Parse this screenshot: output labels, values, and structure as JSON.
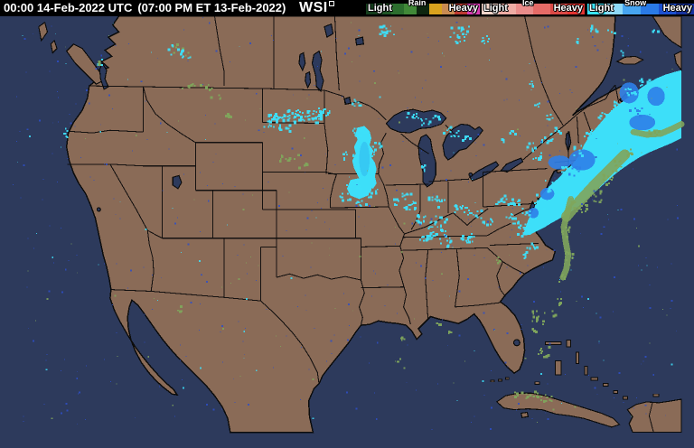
{
  "header": {
    "timestamp_utc": "00:00 14-Feb-2022 UTC",
    "timestamp_local": "(07:00 PM ET 13-Feb-2022)",
    "logo": "WSI"
  },
  "legend": {
    "groups": [
      {
        "id": "rain",
        "title": "Rain",
        "light_label": "Light",
        "heavy_label": "Heavy",
        "segments": [
          "#143e1c",
          "#1f5526",
          "#2c6e2e",
          "#418938",
          "#0d260f",
          "#d9a21e",
          "#c98b52",
          "#bc3a31",
          "#d83cb4"
        ]
      },
      {
        "id": "ice",
        "title": "Ice",
        "light_label": "Light",
        "heavy_label": "Heavy",
        "segments": [
          "#f2d4c9",
          "#eeaca4",
          "#e98c8a",
          "#e56b67",
          "#da4a46",
          "#e23431"
        ]
      },
      {
        "id": "snow",
        "title": "Snow",
        "light_label": "Light",
        "heavy_label": "Heavy",
        "segments": [
          "#38e3fb",
          "#8ed9f7",
          "#47a5f0",
          "#2a7ae6",
          "#1c50cf",
          "#16329f"
        ]
      }
    ]
  },
  "map": {
    "colors": {
      "topbar_bg": "#000000",
      "topbar_text": "#ffffff",
      "ocean": "#2d3a5c",
      "land": "#8a6b57",
      "border_line": "#0c0c0c",
      "snow_light": "#3ddff9",
      "snow_core": "#35c5f2",
      "snow_heavy": "#2e7fe8",
      "rain_light": "#7fa55c",
      "speckle_blue": "#2e4fc5"
    }
  }
}
